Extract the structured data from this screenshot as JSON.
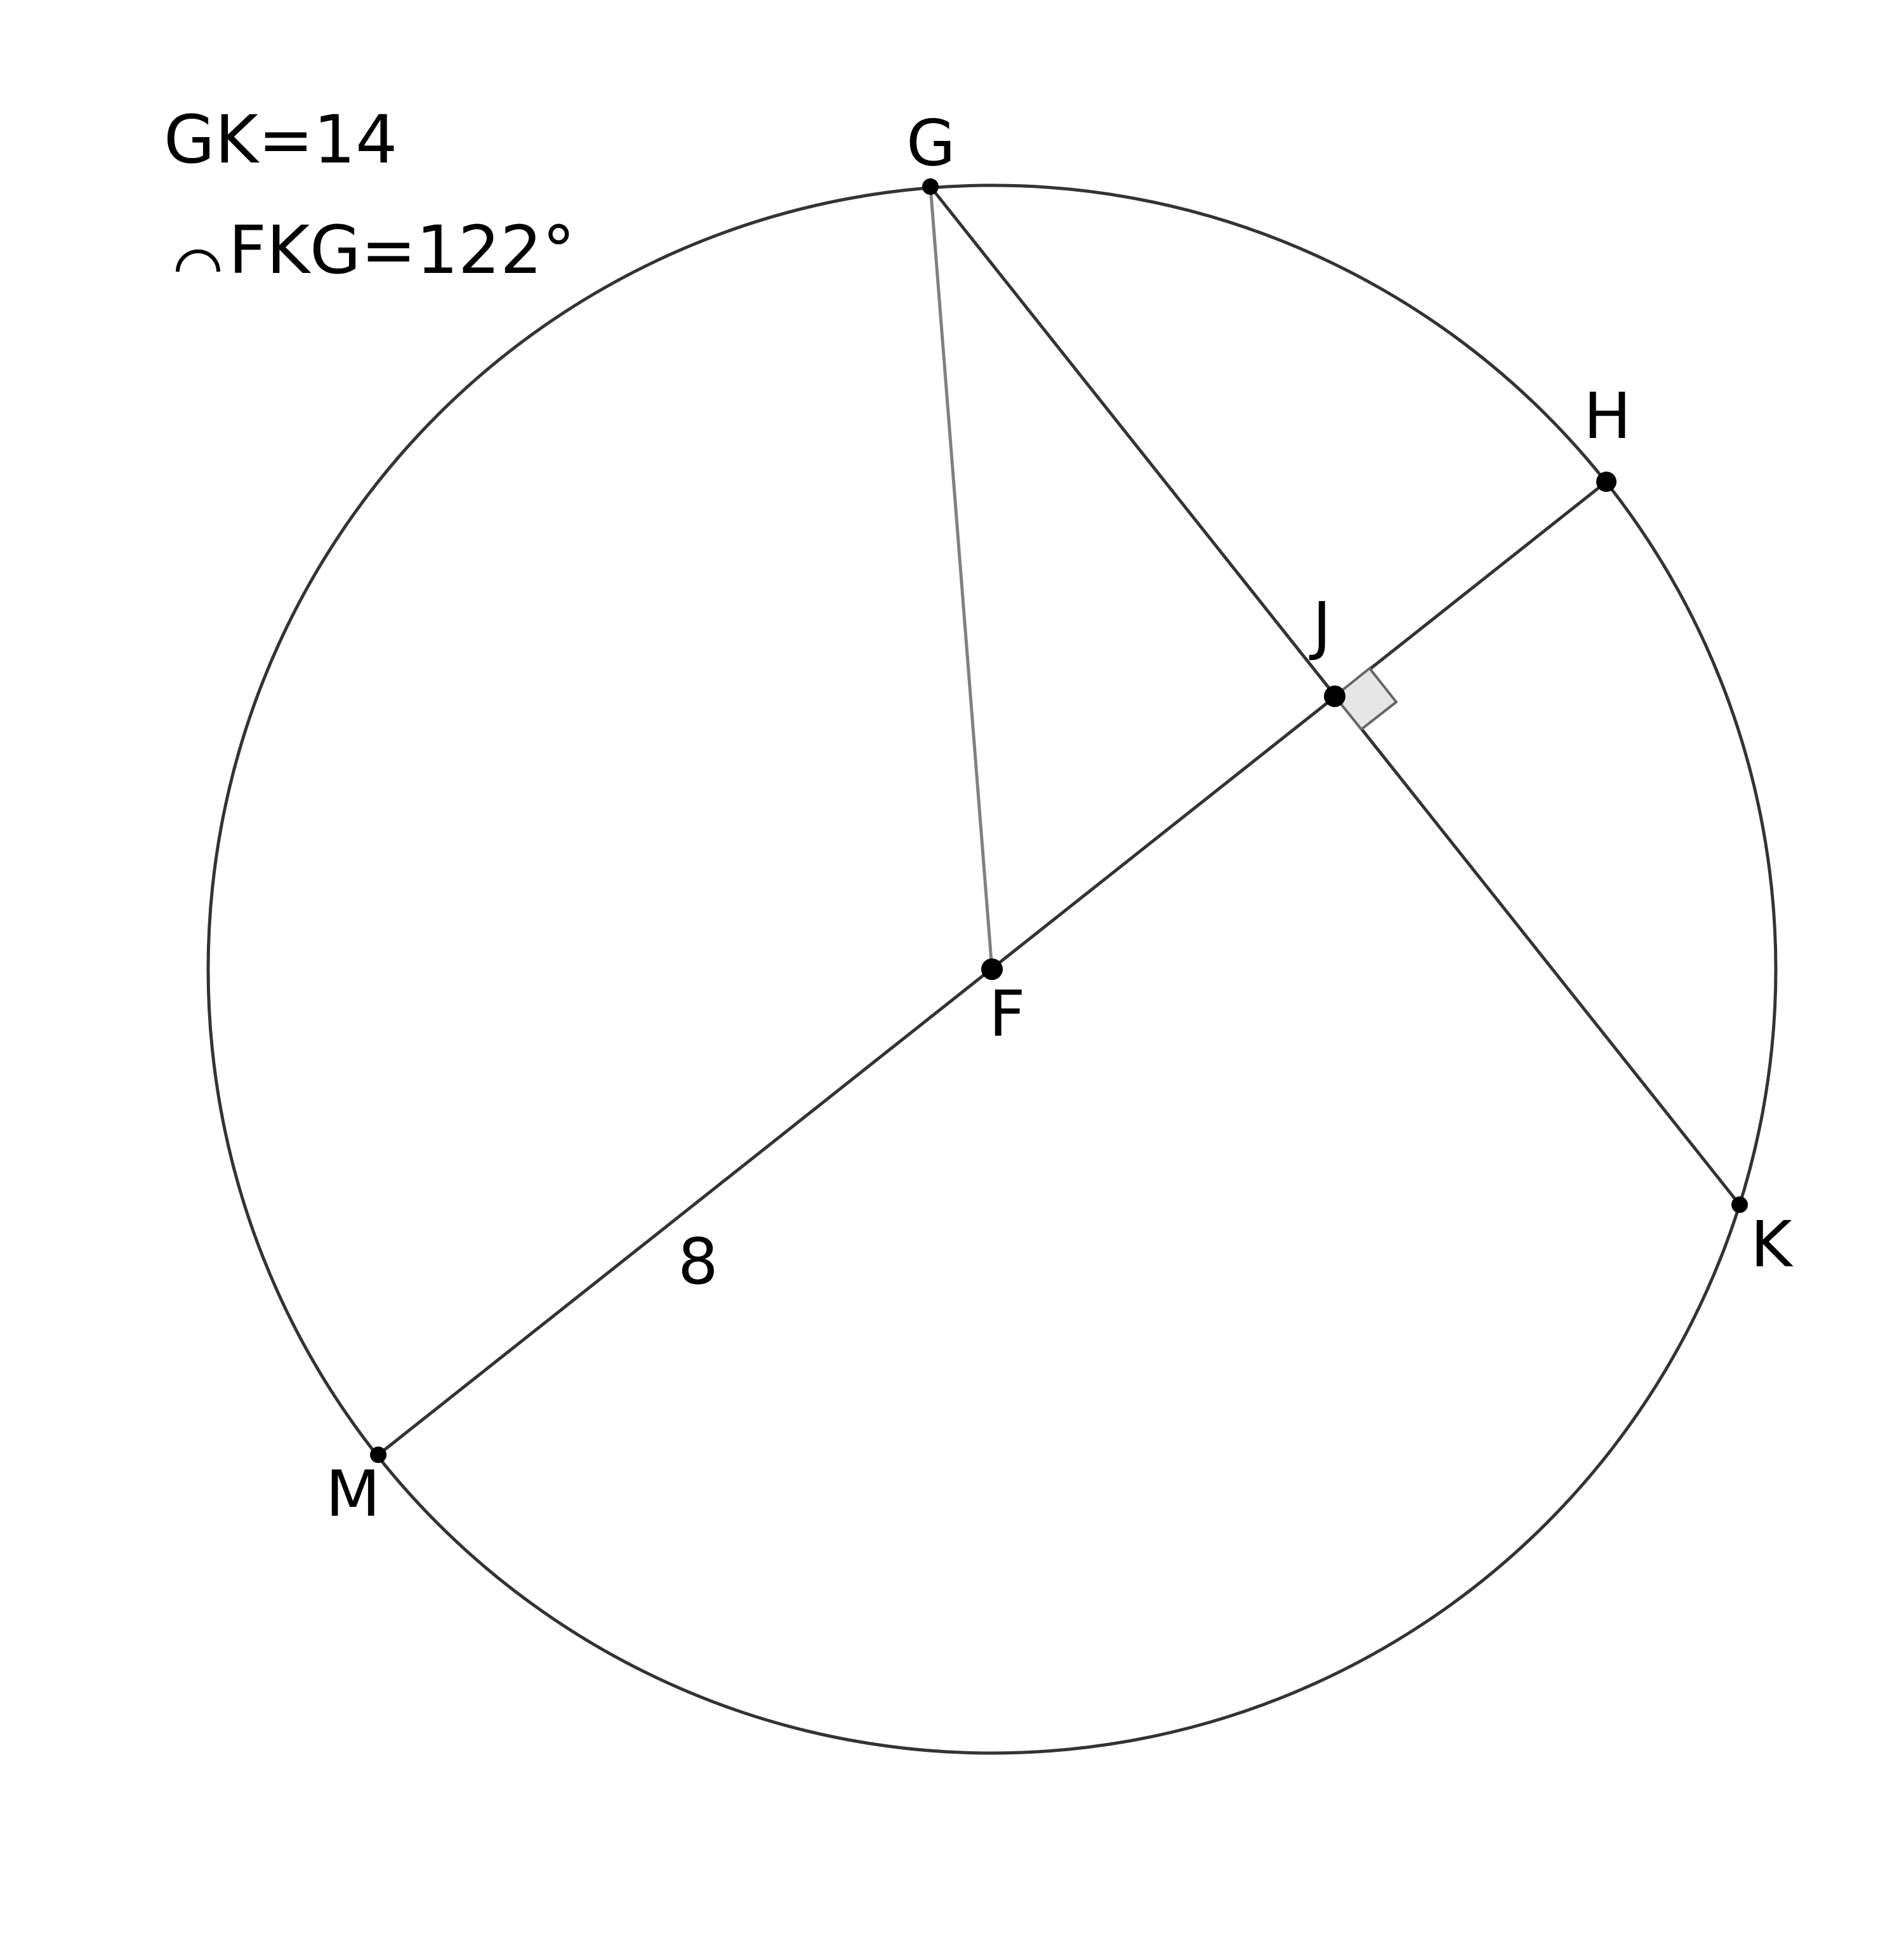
{
  "given": {
    "gk": "GK=14",
    "arc": "FKG=122°"
  },
  "segment_label": "8",
  "points": {
    "G": "G",
    "H": "H",
    "J": "J",
    "F": "F",
    "K": "K",
    "M": "M"
  },
  "colors": {
    "stroke": "#333333",
    "radius_stroke": "#808080",
    "right_angle_fill": "#e6e6e6"
  }
}
